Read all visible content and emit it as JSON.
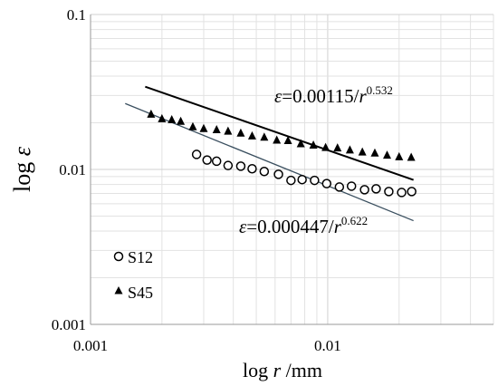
{
  "chart_data": {
    "type": "scatter",
    "x_scale": "log",
    "y_scale": "log",
    "xlim": [
      0.001,
      0.05
    ],
    "ylim": [
      0.001,
      0.1
    ],
    "xlabel_prefix": "log ",
    "xlabel_var": "r",
    "xlabel_unit": " /mm",
    "ylabel_prefix": "log ",
    "ylabel_var": "ε",
    "x_ticks": [
      "0.001",
      "0.01"
    ],
    "y_ticks": [
      "0.001",
      "0.01",
      "0.1"
    ],
    "grid": true,
    "legend_position": "bottom-left",
    "series": [
      {
        "name": "S12",
        "marker": "open-circle",
        "x": [
          0.0028,
          0.0031,
          0.0034,
          0.0038,
          0.0043,
          0.0048,
          0.0054,
          0.0062,
          0.007,
          0.0078,
          0.0088,
          0.0099,
          0.0112,
          0.0126,
          0.0143,
          0.016,
          0.0181,
          0.0205,
          0.0226
        ],
        "y": [
          0.0125,
          0.0115,
          0.0113,
          0.0106,
          0.0105,
          0.0101,
          0.0097,
          0.0093,
          0.0085,
          0.0086,
          0.0085,
          0.0081,
          0.0077,
          0.0078,
          0.0074,
          0.0075,
          0.0072,
          0.0071,
          0.0072
        ],
        "fit": {
          "equation_lhs": "ε",
          "equation_mid": "=0.000447/",
          "equation_var": "r",
          "equation_exp": "0.622",
          "coefficient": 0.000447,
          "exponent": 0.622,
          "x_range": [
            0.0014,
            0.023
          ],
          "color": "#3a4f5f"
        }
      },
      {
        "name": "S45",
        "marker": "filled-triangle",
        "x": [
          0.0018,
          0.002,
          0.0022,
          0.0024,
          0.0027,
          0.003,
          0.0034,
          0.0038,
          0.0043,
          0.0048,
          0.0054,
          0.0061,
          0.0068,
          0.0077,
          0.0087,
          0.0098,
          0.011,
          0.0124,
          0.014,
          0.0158,
          0.0178,
          0.02,
          0.0225
        ],
        "y": [
          0.0228,
          0.0213,
          0.021,
          0.0205,
          0.0189,
          0.0184,
          0.0181,
          0.0177,
          0.0172,
          0.0165,
          0.0162,
          0.0155,
          0.0154,
          0.0147,
          0.0144,
          0.0139,
          0.0138,
          0.0134,
          0.013,
          0.0128,
          0.0124,
          0.0121,
          0.012
        ],
        "fit": {
          "equation_lhs": "ε",
          "equation_mid": "=0.00115/",
          "equation_var": "r",
          "equation_exp": "0.532",
          "coefficient": 0.00115,
          "exponent": 0.532,
          "x_range": [
            0.0017,
            0.023
          ],
          "color": "#000000"
        }
      }
    ]
  }
}
